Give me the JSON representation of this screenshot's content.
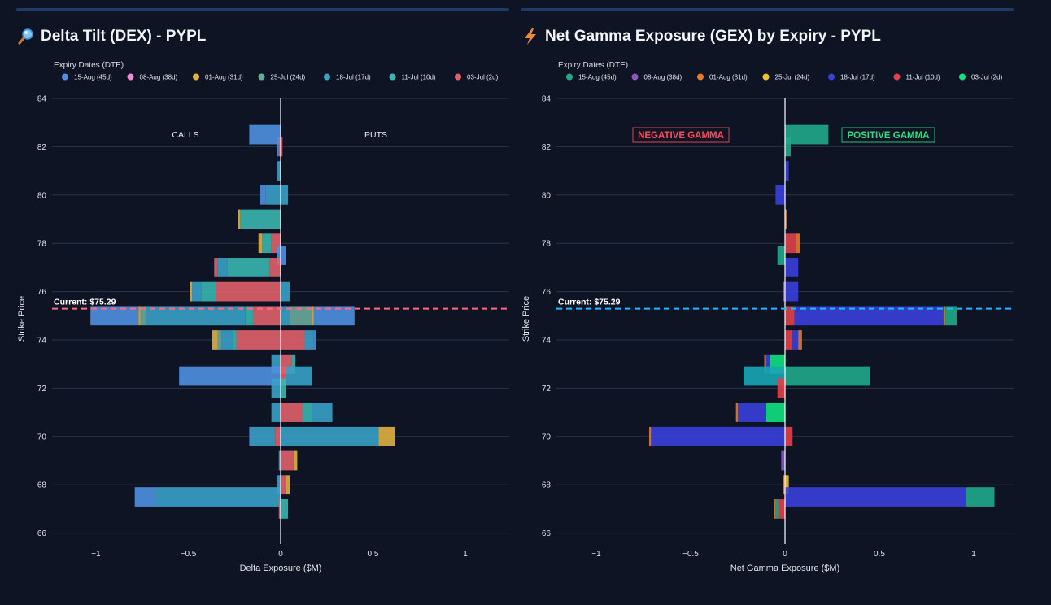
{
  "left": {
    "title": "Delta Tilt (DEX) - PYPL",
    "icon": "magnifier-icon",
    "legend_title": "Expiry Dates (DTE)",
    "legend": [
      {
        "label": "15-Aug (45d)",
        "color": "#4f8fe0"
      },
      {
        "label": "08-Aug (38d)",
        "color": "#f08ad8"
      },
      {
        "label": "01-Aug (31d)",
        "color": "#e0b040"
      },
      {
        "label": "25-Jul (24d)",
        "color": "#6aa89a"
      },
      {
        "label": "18-Jul (17d)",
        "color": "#3aa0c8"
      },
      {
        "label": "11-Jul (10d)",
        "color": "#3ab5b0"
      },
      {
        "label": "03-Jul (2d)",
        "color": "#e0606a"
      }
    ],
    "annotations": {
      "left_text": "CALLS",
      "right_text": "PUTS",
      "current": "Current: $75.29"
    }
  },
  "right": {
    "title": "Net Gamma Exposure (GEX) by Expiry - PYPL",
    "icon": "lightning-icon",
    "legend_title": "Expiry Dates (DTE)",
    "legend": [
      {
        "label": "15-Aug (45d)",
        "color": "#1fa88a"
      },
      {
        "label": "08-Aug (38d)",
        "color": "#8a5ac0"
      },
      {
        "label": "01-Aug (31d)",
        "color": "#e07c2a"
      },
      {
        "label": "25-Jul (24d)",
        "color": "#f0c030"
      },
      {
        "label": "18-Jul (17d)",
        "color": "#3a3fdc"
      },
      {
        "label": "11-Jul (10d)",
        "color": "#e0404a"
      },
      {
        "label": "03-Jul (2d)",
        "color": "#10e080"
      }
    ],
    "annotations": {
      "neg_label": "NEGATIVE GAMMA",
      "pos_label": "POSITIVE GAMMA",
      "current": "Current: $75.29"
    }
  },
  "chart_data": [
    {
      "type": "bar",
      "orientation": "horizontal",
      "stacked": true,
      "title": "Delta Tilt (DEX) - PYPL",
      "xlabel": "Delta Exposure ($M)",
      "ylabel": "Strike Price",
      "xlim": [
        -1.25,
        1.25
      ],
      "ylim": [
        65.8,
        84
      ],
      "xticks": [
        -1,
        -0.5,
        0,
        0.5,
        1
      ],
      "xtick_labels": [
        "−1",
        "−0.5",
        "0",
        "0.5",
        "1"
      ],
      "yticks": [
        66,
        68,
        70,
        72,
        74,
        76,
        78,
        80,
        82,
        84
      ],
      "current_price": 75.29,
      "bar_height": 0.8,
      "bars": [
        {
          "strike": 82.5,
          "segments": [
            {
              "start": 0,
              "end": -0.17,
              "color": "#4f8fe0"
            }
          ]
        },
        {
          "strike": 82,
          "segments": [
            {
              "start": 0,
              "end": -0.01,
              "color": "#e0606a"
            },
            {
              "start": -0.01,
              "end": -0.02,
              "color": "#4f8fe0"
            },
            {
              "start": 0,
              "end": 0.01,
              "color": "#e0606a"
            }
          ]
        },
        {
          "strike": 81,
          "segments": [
            {
              "start": 0,
              "end": -0.02,
              "color": "#3aa0c8"
            }
          ]
        },
        {
          "strike": 80,
          "segments": [
            {
              "start": 0,
              "end": -0.08,
              "color": "#3aa0c8"
            },
            {
              "start": -0.08,
              "end": -0.11,
              "color": "#4f8fe0"
            },
            {
              "start": 0,
              "end": 0.04,
              "color": "#3aa0c8"
            }
          ]
        },
        {
          "strike": 79,
          "segments": [
            {
              "start": 0,
              "end": -0.22,
              "color": "#3ab5b0"
            },
            {
              "start": -0.22,
              "end": -0.23,
              "color": "#e0b040"
            }
          ]
        },
        {
          "strike": 78,
          "segments": [
            {
              "start": 0,
              "end": -0.05,
              "color": "#e0606a"
            },
            {
              "start": -0.05,
              "end": -0.1,
              "color": "#3ab5b0"
            },
            {
              "start": -0.1,
              "end": -0.12,
              "color": "#e0b040"
            }
          ]
        },
        {
          "strike": 77.5,
          "segments": [
            {
              "start": 0,
              "end": -0.02,
              "color": "#4f8fe0"
            },
            {
              "start": 0,
              "end": 0.03,
              "color": "#4f8fe0"
            }
          ]
        },
        {
          "strike": 77,
          "segments": [
            {
              "start": 0,
              "end": -0.06,
              "color": "#e0606a"
            },
            {
              "start": -0.06,
              "end": -0.29,
              "color": "#3ab5b0"
            },
            {
              "start": -0.29,
              "end": -0.34,
              "color": "#3aa0c8"
            },
            {
              "start": -0.34,
              "end": -0.36,
              "color": "#e0606a"
            }
          ]
        },
        {
          "strike": 76,
          "segments": [
            {
              "start": 0,
              "end": -0.35,
              "color": "#e0606a"
            },
            {
              "start": -0.35,
              "end": -0.43,
              "color": "#3ab5b0"
            },
            {
              "start": -0.43,
              "end": -0.48,
              "color": "#3aa0c8"
            },
            {
              "start": -0.48,
              "end": -0.49,
              "color": "#e0b040"
            },
            {
              "start": 0,
              "end": 0.05,
              "color": "#3aa0c8"
            }
          ]
        },
        {
          "strike": 75,
          "segments": [
            {
              "start": 0,
              "end": -0.15,
              "color": "#e0606a"
            },
            {
              "start": -0.15,
              "end": -0.19,
              "color": "#3ab5b0"
            },
            {
              "start": -0.19,
              "end": -0.73,
              "color": "#3aa0c8"
            },
            {
              "start": -0.73,
              "end": -0.76,
              "color": "#6aa89a"
            },
            {
              "start": -0.76,
              "end": -0.77,
              "color": "#e0b040"
            },
            {
              "start": -0.77,
              "end": -1.03,
              "color": "#4f8fe0"
            },
            {
              "start": 0,
              "end": 0.05,
              "color": "#3aa0c8"
            },
            {
              "start": 0.05,
              "end": 0.17,
              "color": "#6aa89a"
            },
            {
              "start": 0.17,
              "end": 0.18,
              "color": "#e0b040"
            },
            {
              "start": 0.18,
              "end": 0.4,
              "color": "#4f8fe0"
            }
          ]
        },
        {
          "strike": 74,
          "segments": [
            {
              "start": 0,
              "end": -0.24,
              "color": "#e0606a"
            },
            {
              "start": -0.24,
              "end": -0.26,
              "color": "#3ab5b0"
            },
            {
              "start": -0.26,
              "end": -0.32,
              "color": "#3aa0c8"
            },
            {
              "start": -0.32,
              "end": -0.34,
              "color": "#6aa89a"
            },
            {
              "start": -0.34,
              "end": -0.37,
              "color": "#e0b040"
            },
            {
              "start": 0,
              "end": 0.13,
              "color": "#e0606a"
            },
            {
              "start": 0.13,
              "end": 0.18,
              "color": "#3aa0c8"
            },
            {
              "start": 0.18,
              "end": 0.19,
              "color": "#4f8fe0"
            }
          ]
        },
        {
          "strike": 73,
          "segments": [
            {
              "start": 0,
              "end": -0.05,
              "color": "#3aa0c8"
            },
            {
              "start": 0,
              "end": 0.06,
              "color": "#e0606a"
            },
            {
              "start": 0.06,
              "end": 0.08,
              "color": "#3ab5b0"
            }
          ]
        },
        {
          "strike": 72.5,
          "segments": [
            {
              "start": 0,
              "end": -0.55,
              "color": "#4f8fe0"
            },
            {
              "start": 0,
              "end": 0.03,
              "color": "#e0606a"
            },
            {
              "start": 0.03,
              "end": 0.17,
              "color": "#3aa0c8"
            }
          ]
        },
        {
          "strike": 72,
          "segments": [
            {
              "start": 0,
              "end": -0.05,
              "color": "#3aa0c8"
            },
            {
              "start": 0,
              "end": 0.03,
              "color": "#3ab5b0"
            }
          ]
        },
        {
          "strike": 71,
          "segments": [
            {
              "start": 0,
              "end": -0.05,
              "color": "#3aa0c8"
            },
            {
              "start": 0,
              "end": 0.12,
              "color": "#e0606a"
            },
            {
              "start": 0.12,
              "end": 0.17,
              "color": "#3ab5b0"
            },
            {
              "start": 0.17,
              "end": 0.28,
              "color": "#3aa0c8"
            }
          ]
        },
        {
          "strike": 70,
          "segments": [
            {
              "start": 0,
              "end": -0.03,
              "color": "#e0606a"
            },
            {
              "start": -0.03,
              "end": -0.16,
              "color": "#3aa0c8"
            },
            {
              "start": -0.16,
              "end": -0.17,
              "color": "#4f8fe0"
            },
            {
              "start": 0,
              "end": 0.53,
              "color": "#3aa0c8"
            },
            {
              "start": 0.53,
              "end": 0.62,
              "color": "#e0b040"
            }
          ]
        },
        {
          "strike": 69,
          "segments": [
            {
              "start": 0,
              "end": 0.07,
              "color": "#e0606a"
            },
            {
              "start": 0.07,
              "end": 0.09,
              "color": "#e0b040"
            },
            {
              "start": 0,
              "end": -0.01,
              "color": "#3aa0c8"
            }
          ]
        },
        {
          "strike": 68,
          "segments": [
            {
              "start": 0,
              "end": -0.02,
              "color": "#3aa0c8"
            },
            {
              "start": 0,
              "end": 0.03,
              "color": "#e0606a"
            },
            {
              "start": 0.03,
              "end": 0.05,
              "color": "#e0b040"
            }
          ]
        },
        {
          "strike": 67.5,
          "segments": [
            {
              "start": 0,
              "end": -0.68,
              "color": "#3aa0c8"
            },
            {
              "start": -0.68,
              "end": -0.79,
              "color": "#4f8fe0"
            }
          ]
        },
        {
          "strike": 67,
          "segments": [
            {
              "start": 0,
              "end": 0.04,
              "color": "#3ab5b0"
            },
            {
              "start": 0,
              "end": -0.01,
              "color": "#e0606a"
            }
          ]
        }
      ]
    },
    {
      "type": "bar",
      "orientation": "horizontal",
      "stacked": true,
      "title": "Net Gamma Exposure (GEX) by Expiry - PYPL",
      "xlabel": "Net Gamma Exposure ($M)",
      "ylabel": "Strike Price",
      "xlim": [
        -1.25,
        1.25
      ],
      "ylim": [
        65.8,
        84
      ],
      "xticks": [
        -1,
        -0.5,
        0,
        0.5,
        1
      ],
      "xtick_labels": [
        "−1",
        "−0.5",
        "0",
        "0.5",
        "1"
      ],
      "yticks": [
        66,
        68,
        70,
        72,
        74,
        76,
        78,
        80,
        82,
        84
      ],
      "current_price": 75.29,
      "bar_height": 0.8,
      "bars": [
        {
          "strike": 82.5,
          "segments": [
            {
              "start": 0,
              "end": 0.23,
              "color": "#1fa88a"
            }
          ]
        },
        {
          "strike": 82,
          "segments": [
            {
              "start": 0,
              "end": 0.03,
              "color": "#1fa88a"
            }
          ]
        },
        {
          "strike": 81,
          "segments": [
            {
              "start": 0,
              "end": 0.02,
              "color": "#3a3fdc"
            }
          ]
        },
        {
          "strike": 80,
          "segments": [
            {
              "start": 0,
              "end": -0.05,
              "color": "#3a3fdc"
            }
          ]
        },
        {
          "strike": 79,
          "segments": [
            {
              "start": 0,
              "end": 0.01,
              "color": "#e07c2a"
            }
          ]
        },
        {
          "strike": 78,
          "segments": [
            {
              "start": 0,
              "end": 0.06,
              "color": "#e0404a"
            },
            {
              "start": 0.06,
              "end": 0.08,
              "color": "#e07c2a"
            }
          ]
        },
        {
          "strike": 77.5,
          "segments": [
            {
              "start": 0,
              "end": -0.04,
              "color": "#1fa88a"
            }
          ]
        },
        {
          "strike": 77,
          "segments": [
            {
              "start": 0,
              "end": 0.07,
              "color": "#3a3fdc"
            }
          ]
        },
        {
          "strike": 76,
          "segments": [
            {
              "start": 0,
              "end": 0.07,
              "color": "#3a3fdc"
            },
            {
              "start": 0,
              "end": -0.01,
              "color": "#8a5ac0"
            }
          ]
        },
        {
          "strike": 75,
          "segments": [
            {
              "start": 0,
              "end": 0.05,
              "color": "#e0404a"
            },
            {
              "start": 0.05,
              "end": 0.84,
              "color": "#3a3fdc"
            },
            {
              "start": 0.84,
              "end": 0.85,
              "color": "#e07c2a"
            },
            {
              "start": 0.85,
              "end": 0.91,
              "color": "#1fa88a"
            }
          ]
        },
        {
          "strike": 74,
          "segments": [
            {
              "start": 0,
              "end": 0.04,
              "color": "#e0404a"
            },
            {
              "start": 0.04,
              "end": 0.07,
              "color": "#3a3fdc"
            },
            {
              "start": 0.07,
              "end": 0.09,
              "color": "#e07c2a"
            }
          ]
        },
        {
          "strike": 73,
          "segments": [
            {
              "start": 0,
              "end": -0.08,
              "color": "#10e080"
            },
            {
              "start": -0.08,
              "end": -0.1,
              "color": "#3a3fdc"
            },
            {
              "start": -0.1,
              "end": -0.11,
              "color": "#e07c2a"
            }
          ]
        },
        {
          "strike": 72.5,
          "segments": [
            {
              "start": 0,
              "end": 0.45,
              "color": "#1fa88a"
            },
            {
              "start": 0,
              "end": -0.22,
              "color": "#1aa6b5"
            }
          ]
        },
        {
          "strike": 72,
          "segments": [
            {
              "start": 0,
              "end": -0.04,
              "color": "#e0404a"
            }
          ]
        },
        {
          "strike": 71,
          "segments": [
            {
              "start": 0,
              "end": -0.1,
              "color": "#10e080"
            },
            {
              "start": -0.1,
              "end": -0.25,
              "color": "#3a3fdc"
            },
            {
              "start": -0.25,
              "end": -0.26,
              "color": "#e07c2a"
            }
          ]
        },
        {
          "strike": 70,
          "segments": [
            {
              "start": 0,
              "end": 0.04,
              "color": "#e0404a"
            },
            {
              "start": 0,
              "end": -0.71,
              "color": "#3a3fdc"
            },
            {
              "start": -0.71,
              "end": -0.72,
              "color": "#e07c2a"
            }
          ]
        },
        {
          "strike": 69,
          "segments": [
            {
              "start": 0,
              "end": -0.02,
              "color": "#8a5ac0"
            }
          ]
        },
        {
          "strike": 68,
          "segments": [
            {
              "start": 0,
              "end": 0.02,
              "color": "#f0c030"
            },
            {
              "start": 0,
              "end": -0.01,
              "color": "#e07c2a"
            }
          ]
        },
        {
          "strike": 67.5,
          "segments": [
            {
              "start": 0,
              "end": 0.96,
              "color": "#3a3fdc"
            },
            {
              "start": 0.96,
              "end": 1.11,
              "color": "#1fa88a"
            }
          ]
        },
        {
          "strike": 67,
          "segments": [
            {
              "start": 0,
              "end": -0.03,
              "color": "#e0404a"
            },
            {
              "start": -0.03,
              "end": -0.05,
              "color": "#1fa88a"
            },
            {
              "start": -0.05,
              "end": -0.06,
              "color": "#e07c2a"
            }
          ]
        }
      ]
    }
  ]
}
